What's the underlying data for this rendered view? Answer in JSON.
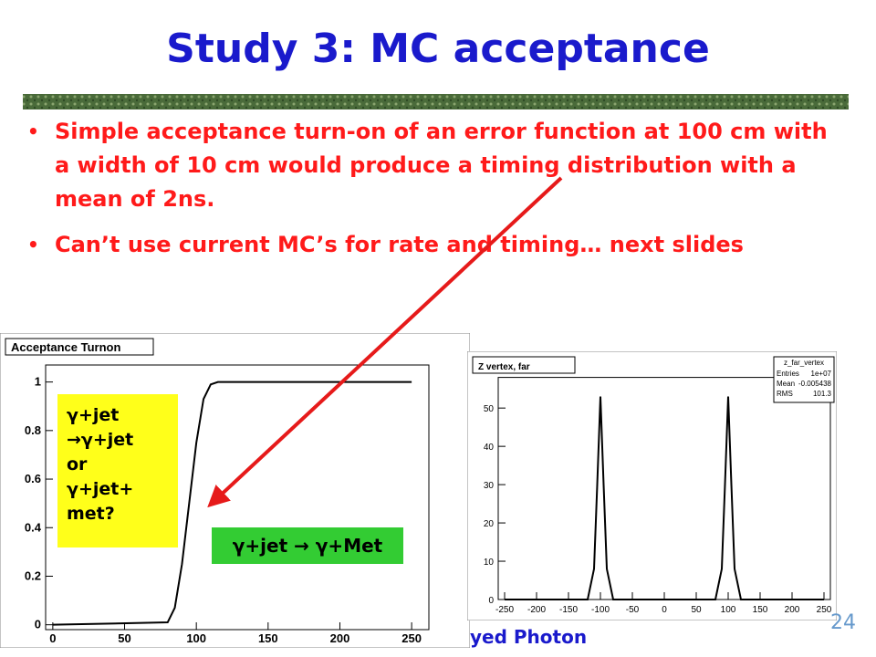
{
  "header": {
    "title": "Study 3: MC acceptance"
  },
  "bullets": [
    "Simple acceptance turn-on of an error function at 100 cm with a width of 10 cm would produce a timing distribution with a mean of 2ns.",
    "Can’t use current MC’s for rate and timing… next slides"
  ],
  "annotations": {
    "yellow_box": [
      "γ+jet",
      "→γ+jet",
      "or",
      "γ+jet+",
      "met?"
    ],
    "green_box": "γ+jet → γ+Met"
  },
  "footer": {
    "text": "yed Photon",
    "page": "24"
  },
  "stats": {
    "title": "z_far_vertex",
    "rows": [
      [
        "Entries",
        "1e+07"
      ],
      [
        "Mean",
        "-0.005438"
      ],
      [
        "RMS",
        "101.3"
      ]
    ]
  },
  "chart_data": [
    {
      "type": "line",
      "title": "Acceptance Turnon",
      "color": "#000000",
      "x": [
        0,
        80,
        85,
        90,
        95,
        100,
        105,
        110,
        115,
        120,
        250
      ],
      "values": [
        0,
        0.01,
        0.07,
        0.25,
        0.5,
        0.75,
        0.93,
        0.99,
        1,
        1,
        1
      ],
      "xlim": [
        -5,
        262
      ],
      "ylim": [
        -0.02,
        1.07
      ],
      "xticks": [
        0,
        50,
        100,
        150,
        200,
        250
      ],
      "yticks": [
        0,
        0.2,
        0.4,
        0.6,
        0.8,
        1
      ]
    },
    {
      "type": "line",
      "title": "Z vertex, far",
      "color": "#000000",
      "x": [
        -250,
        -120,
        -110,
        -105,
        -100,
        -95,
        -90,
        -80,
        80,
        90,
        95,
        100,
        105,
        110,
        120,
        250
      ],
      "values": [
        0,
        0,
        8,
        30,
        53,
        30,
        8,
        0,
        0,
        8,
        30,
        53,
        30,
        8,
        0,
        0
      ],
      "xlim": [
        -260,
        260
      ],
      "ylim": [
        0,
        58
      ],
      "xticks": [
        -250,
        -200,
        -150,
        -100,
        -50,
        0,
        50,
        100,
        150,
        200,
        250
      ],
      "yticks": [
        0,
        10,
        20,
        30,
        40,
        50
      ]
    }
  ]
}
